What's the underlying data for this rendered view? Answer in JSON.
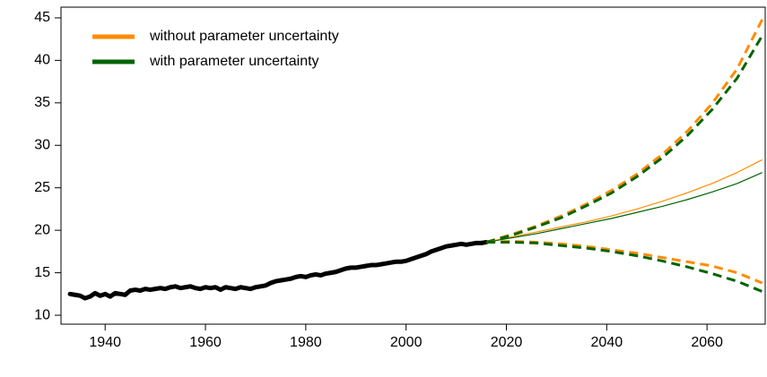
{
  "chart_data": {
    "type": "line",
    "xlim": [
      1931.2,
      2071.6
    ],
    "ylim": [
      8.95,
      46.26
    ],
    "xticks": [
      1940,
      1960,
      1980,
      2000,
      2020,
      2040,
      2060
    ],
    "yticks": [
      10,
      15,
      20,
      25,
      30,
      35,
      40,
      45
    ],
    "legend": "topleft",
    "series": [
      {
        "color": "#000000",
        "dashed": false,
        "x": [
          1933,
          1934,
          1935,
          1936,
          1937,
          1938,
          1939,
          1940,
          1941,
          1942,
          1943,
          1944,
          1945,
          1946,
          1947,
          1948,
          1949,
          1950,
          1951,
          1952,
          1953,
          1954,
          1955,
          1956,
          1957,
          1958,
          1959,
          1960,
          1961,
          1962,
          1963,
          1964,
          1965,
          1966,
          1967,
          1968,
          1969,
          1970,
          1971,
          1972,
          1973,
          1974,
          1975,
          1976,
          1977,
          1978,
          1979,
          1980,
          1981,
          1982,
          1983,
          1984,
          1985,
          1986,
          1987,
          1988,
          1989,
          1990,
          1991,
          1992,
          1993,
          1994,
          1995,
          1996,
          1997,
          1998,
          1999,
          2000,
          2001,
          2002,
          2003,
          2004,
          2005,
          2006,
          2007,
          2008,
          2009,
          2010,
          2011,
          2012,
          2013,
          2014,
          2015,
          2016
        ],
        "values": [
          12.5,
          12.4,
          12.3,
          12.0,
          12.2,
          12.6,
          12.3,
          12.5,
          12.2,
          12.6,
          12.5,
          12.4,
          12.9,
          13.0,
          12.9,
          13.1,
          13.0,
          13.1,
          13.2,
          13.1,
          13.3,
          13.4,
          13.2,
          13.3,
          13.4,
          13.2,
          13.1,
          13.3,
          13.2,
          13.3,
          13.0,
          13.3,
          13.2,
          13.1,
          13.3,
          13.2,
          13.1,
          13.3,
          13.4,
          13.5,
          13.8,
          14.0,
          14.1,
          14.2,
          14.3,
          14.5,
          14.6,
          14.5,
          14.7,
          14.8,
          14.7,
          14.9,
          15.0,
          15.1,
          15.3,
          15.5,
          15.6,
          15.6,
          15.7,
          15.8,
          15.9,
          15.9,
          16.0,
          16.1,
          16.2,
          16.3,
          16.3,
          16.4,
          16.6,
          16.8,
          17.0,
          17.2,
          17.5,
          17.7,
          17.9,
          18.1,
          18.2,
          18.3,
          18.4,
          18.3,
          18.4,
          18.5,
          18.5,
          18.6
        ]
      },
      {
        "name": "without parameter uncertainty",
        "color": "#ff8c00",
        "dashed": false,
        "x": [
          2016,
          2021,
          2026,
          2031,
          2036,
          2041,
          2046,
          2051,
          2056,
          2061,
          2066,
          2071
        ],
        "values": [
          18.6,
          19.2,
          19.8,
          20.4,
          21.0,
          21.7,
          22.5,
          23.4,
          24.4,
          25.5,
          26.8,
          28.3
        ]
      },
      {
        "name": "with parameter uncertainty",
        "color": "#006400",
        "dashed": false,
        "x": [
          2016,
          2021,
          2026,
          2031,
          2036,
          2041,
          2046,
          2051,
          2056,
          2061,
          2066,
          2071
        ],
        "values": [
          18.6,
          19.1,
          19.6,
          20.2,
          20.8,
          21.4,
          22.1,
          22.8,
          23.6,
          24.5,
          25.5,
          26.8
        ]
      },
      {
        "color": "#ff8c00",
        "dashed": true,
        "x": [
          2016,
          2021,
          2026,
          2031,
          2036,
          2041,
          2046,
          2051,
          2056,
          2061,
          2066,
          2071
        ],
        "values": [
          18.6,
          19.5,
          20.5,
          21.7,
          23.1,
          24.7,
          26.6,
          28.9,
          31.6,
          34.9,
          39.0,
          44.8
        ]
      },
      {
        "color": "#006400",
        "dashed": true,
        "x": [
          2016,
          2021,
          2026,
          2031,
          2036,
          2041,
          2046,
          2051,
          2056,
          2061,
          2066,
          2071
        ],
        "values": [
          18.6,
          19.4,
          20.4,
          21.5,
          22.9,
          24.4,
          26.3,
          28.5,
          31.1,
          34.2,
          37.9,
          42.9
        ]
      },
      {
        "color": "#ff8c00",
        "dashed": true,
        "x": [
          2016,
          2021,
          2026,
          2031,
          2036,
          2041,
          2046,
          2051,
          2056,
          2061,
          2066,
          2071
        ],
        "values": [
          18.6,
          18.7,
          18.6,
          18.4,
          18.1,
          17.7,
          17.3,
          16.8,
          16.3,
          15.8,
          15.0,
          13.8
        ]
      },
      {
        "color": "#006400",
        "dashed": true,
        "x": [
          2016,
          2021,
          2026,
          2031,
          2036,
          2041,
          2046,
          2051,
          2056,
          2061,
          2066,
          2071
        ],
        "values": [
          18.6,
          18.6,
          18.5,
          18.2,
          17.9,
          17.5,
          17.0,
          16.4,
          15.7,
          14.9,
          14.0,
          12.8
        ]
      }
    ]
  }
}
